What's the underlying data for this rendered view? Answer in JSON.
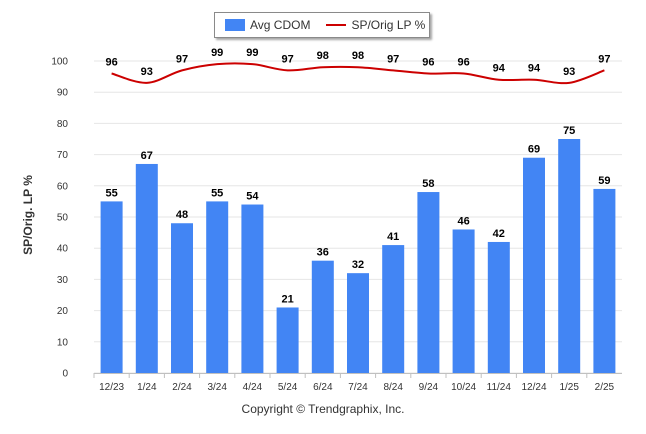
{
  "chart_data": {
    "type": "bar",
    "categories": [
      "12/23",
      "1/24",
      "2/24",
      "3/24",
      "4/24",
      "5/24",
      "6/24",
      "7/24",
      "8/24",
      "9/24",
      "10/24",
      "11/24",
      "12/24",
      "1/25",
      "2/25"
    ],
    "series": [
      {
        "name": "Avg CDOM",
        "type": "bar",
        "color": "#4285f4",
        "values": [
          55,
          67,
          48,
          55,
          54,
          21,
          36,
          32,
          41,
          58,
          46,
          42,
          69,
          75,
          59
        ]
      },
      {
        "name": "SP/Orig LP %",
        "type": "line",
        "color": "#cc0000",
        "values": [
          96,
          93,
          97,
          99,
          99,
          97,
          98,
          98,
          97,
          96,
          96,
          94,
          94,
          93,
          97
        ]
      }
    ],
    "ylabel": "SP/Orig. LP %",
    "ylim": [
      0,
      100
    ],
    "yticks": [
      0,
      10,
      20,
      30,
      40,
      50,
      60,
      70,
      80,
      90,
      100
    ],
    "grid": true,
    "legend_position": "top-center"
  },
  "footer": "Copyright © Trendgraphix, Inc."
}
